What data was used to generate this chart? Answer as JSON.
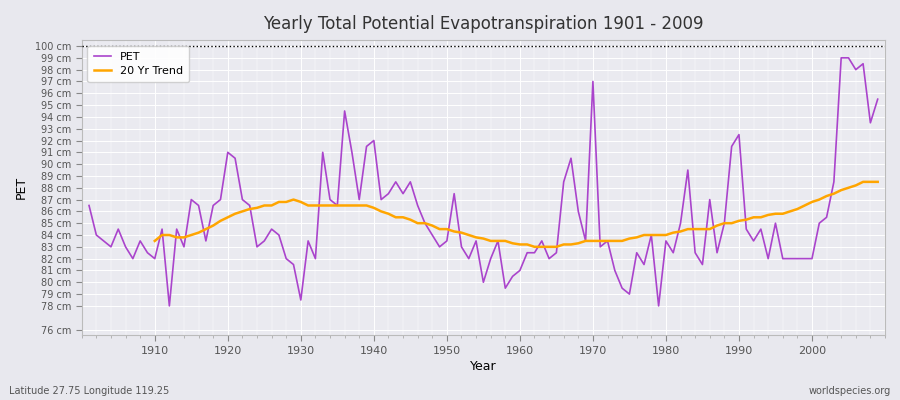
{
  "title": "Yearly Total Potential Evapotranspiration 1901 - 2009",
  "xlabel": "Year",
  "ylabel": "PET",
  "footer_left": "Latitude 27.75 Longitude 119.25",
  "footer_right": "worldspecies.org",
  "pet_color": "#AA44CC",
  "trend_color": "#FFA500",
  "bg_color": "#E8E8EE",
  "plot_bg": "#EAEAF0",
  "years": [
    1901,
    1902,
    1903,
    1904,
    1905,
    1906,
    1907,
    1908,
    1909,
    1910,
    1911,
    1912,
    1913,
    1914,
    1915,
    1916,
    1917,
    1918,
    1919,
    1920,
    1921,
    1922,
    1923,
    1924,
    1925,
    1926,
    1927,
    1928,
    1929,
    1930,
    1931,
    1932,
    1933,
    1934,
    1935,
    1936,
    1937,
    1938,
    1939,
    1940,
    1941,
    1942,
    1943,
    1944,
    1945,
    1946,
    1947,
    1948,
    1949,
    1950,
    1951,
    1952,
    1953,
    1954,
    1955,
    1956,
    1957,
    1958,
    1959,
    1960,
    1961,
    1962,
    1963,
    1964,
    1965,
    1966,
    1967,
    1968,
    1969,
    1970,
    1971,
    1972,
    1973,
    1974,
    1975,
    1976,
    1977,
    1978,
    1979,
    1980,
    1981,
    1982,
    1983,
    1984,
    1985,
    1986,
    1987,
    1988,
    1989,
    1990,
    1991,
    1992,
    1993,
    1994,
    1995,
    1996,
    1997,
    1998,
    1999,
    2000,
    2001,
    2002,
    2003,
    2004,
    2005,
    2006,
    2007,
    2008,
    2009
  ],
  "pet_values": [
    86.5,
    84.0,
    83.5,
    83.0,
    84.5,
    83.0,
    82.0,
    83.5,
    82.5,
    82.0,
    84.5,
    78.0,
    84.5,
    83.0,
    87.0,
    86.5,
    83.5,
    86.5,
    87.0,
    91.0,
    90.5,
    87.0,
    86.5,
    83.0,
    83.5,
    84.5,
    84.0,
    82.0,
    81.5,
    78.5,
    83.5,
    82.0,
    91.0,
    87.0,
    86.5,
    94.5,
    91.0,
    87.0,
    91.5,
    92.0,
    87.0,
    87.5,
    88.5,
    87.5,
    88.5,
    86.5,
    85.0,
    84.0,
    83.0,
    83.5,
    87.5,
    83.0,
    82.0,
    83.5,
    80.0,
    82.0,
    83.5,
    79.5,
    80.5,
    81.0,
    82.5,
    82.5,
    83.5,
    82.0,
    82.5,
    88.5,
    90.5,
    86.0,
    83.5,
    97.0,
    83.0,
    83.5,
    81.0,
    79.5,
    79.0,
    82.5,
    81.5,
    84.0,
    78.0,
    83.5,
    82.5,
    85.0,
    89.5,
    82.5,
    81.5,
    87.0,
    82.5,
    85.0,
    91.5,
    92.5,
    84.5,
    83.5,
    84.5,
    82.0,
    85.0,
    82.0,
    82.0,
    82.0,
    82.0,
    82.0,
    85.0,
    85.5,
    88.5,
    99.0,
    99.0,
    98.0,
    98.5,
    93.5,
    95.5
  ],
  "trend_values": [
    null,
    null,
    null,
    null,
    null,
    null,
    null,
    null,
    null,
    83.5,
    84.0,
    84.0,
    83.8,
    83.8,
    84.0,
    84.2,
    84.5,
    84.8,
    85.2,
    85.5,
    85.8,
    86.0,
    86.2,
    86.3,
    86.5,
    86.5,
    86.8,
    86.8,
    87.0,
    86.8,
    86.5,
    86.5,
    86.5,
    86.5,
    86.5,
    86.5,
    86.5,
    86.5,
    86.5,
    86.3,
    86.0,
    85.8,
    85.5,
    85.5,
    85.3,
    85.0,
    85.0,
    84.8,
    84.5,
    84.5,
    84.3,
    84.2,
    84.0,
    83.8,
    83.7,
    83.5,
    83.5,
    83.5,
    83.3,
    83.2,
    83.2,
    83.0,
    83.0,
    83.0,
    83.0,
    83.2,
    83.2,
    83.3,
    83.5,
    83.5,
    83.5,
    83.5,
    83.5,
    83.5,
    83.7,
    83.8,
    84.0,
    84.0,
    84.0,
    84.0,
    84.2,
    84.3,
    84.5,
    84.5,
    84.5,
    84.5,
    84.8,
    85.0,
    85.0,
    85.2,
    85.3,
    85.5,
    85.5,
    85.7,
    85.8,
    85.8,
    86.0,
    86.2,
    86.5,
    86.8,
    87.0,
    87.3,
    87.5,
    87.8,
    88.0,
    88.2,
    88.5,
    88.5,
    88.5
  ],
  "yticks": [
    76,
    78,
    79,
    80,
    81,
    82,
    83,
    84,
    85,
    86,
    87,
    88,
    89,
    90,
    91,
    92,
    93,
    94,
    95,
    96,
    97,
    98,
    99,
    100
  ],
  "xticks": [
    1910,
    1920,
    1930,
    1940,
    1950,
    1960,
    1970,
    1980,
    1990,
    2000
  ],
  "xlim": [
    1900,
    2010
  ],
  "ylim_bottom": 75.5,
  "ylim_top": 100.5
}
